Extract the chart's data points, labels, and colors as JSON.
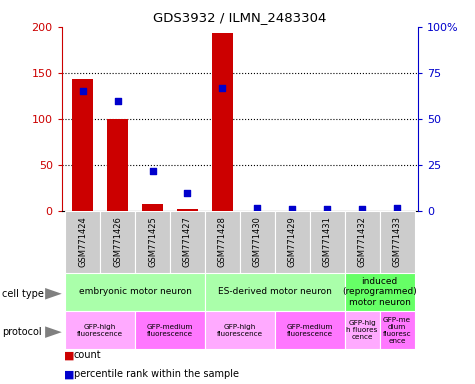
{
  "title": "GDS3932 / ILMN_2483304",
  "samples": [
    "GSM771424",
    "GSM771426",
    "GSM771425",
    "GSM771427",
    "GSM771428",
    "GSM771430",
    "GSM771429",
    "GSM771431",
    "GSM771432",
    "GSM771433"
  ],
  "counts": [
    143,
    100,
    8,
    2,
    193,
    0,
    0,
    0,
    0,
    0
  ],
  "percentiles": [
    65,
    60,
    22,
    10,
    67,
    2,
    1,
    1,
    1,
    2
  ],
  "ylim_left": [
    0,
    200
  ],
  "ylim_right": [
    0,
    100
  ],
  "yticks_left": [
    0,
    50,
    100,
    150,
    200
  ],
  "yticks_right": [
    0,
    25,
    50,
    75,
    100
  ],
  "ytick_labels_left": [
    "0",
    "50",
    "100",
    "150",
    "200"
  ],
  "ytick_labels_right": [
    "0",
    "25",
    "50",
    "75",
    "100%"
  ],
  "cell_type_groups": [
    {
      "label": "embryonic motor neuron",
      "start": 0,
      "end": 4,
      "color": "#aaffaa"
    },
    {
      "label": "ES-derived motor neuron",
      "start": 4,
      "end": 8,
      "color": "#aaffaa"
    },
    {
      "label": "induced\n(reprogrammed)\nmotor neuron",
      "start": 8,
      "end": 10,
      "color": "#66ff66"
    }
  ],
  "protocol_groups": [
    {
      "label": "GFP-high\nfluorescence",
      "start": 0,
      "end": 2,
      "color": "#ffaaff"
    },
    {
      "label": "GFP-medium\nfluorescence",
      "start": 2,
      "end": 4,
      "color": "#ff77ff"
    },
    {
      "label": "GFP-high\nfluorescence",
      "start": 4,
      "end": 6,
      "color": "#ffaaff"
    },
    {
      "label": "GFP-medium\nfluorescence",
      "start": 6,
      "end": 8,
      "color": "#ff77ff"
    },
    {
      "label": "GFP-hig\nh fluores\ncence",
      "start": 8,
      "end": 9,
      "color": "#ffaaff"
    },
    {
      "label": "GFP-me\ndium\nfluoresc\nence",
      "start": 9,
      "end": 10,
      "color": "#ff77ff"
    }
  ],
  "bar_color": "#cc0000",
  "dot_color": "#0000cc",
  "label_color_left": "#cc0000",
  "label_color_right": "#0000cc",
  "sample_bg_color": "#cccccc",
  "legend_count_color": "#cc0000",
  "legend_pct_color": "#0000cc"
}
